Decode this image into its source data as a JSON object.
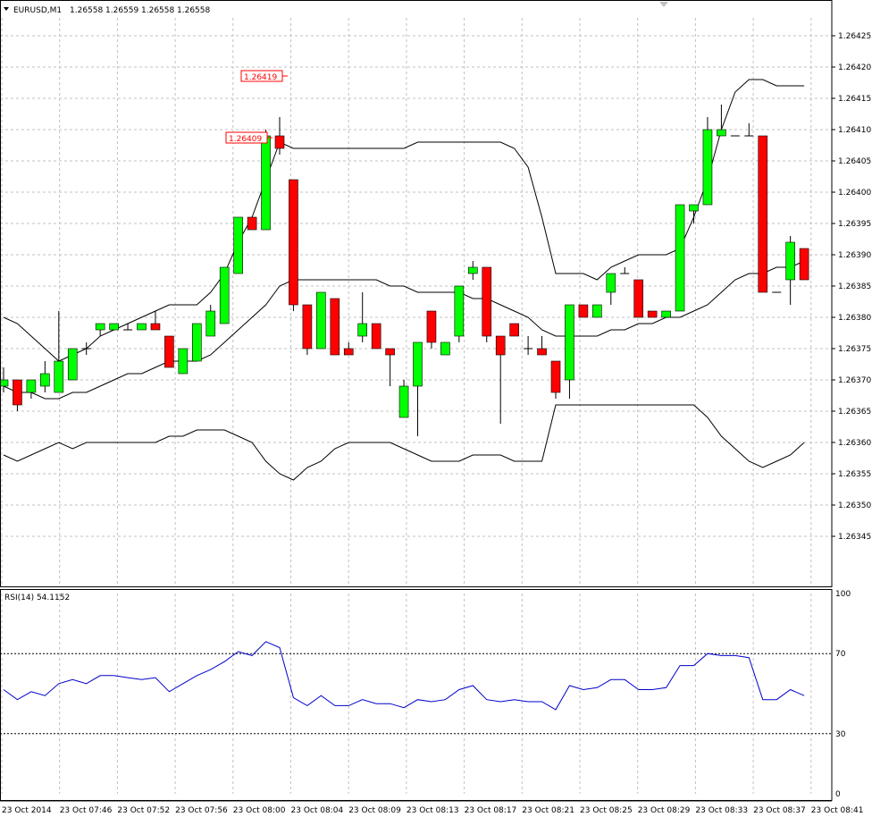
{
  "header": {
    "symbol": "EURUSD,M1",
    "o": "1.26558",
    "h": "1.26559",
    "l": "1.26558",
    "c": "1.26558"
  },
  "rsi_label": "RSI(14) 54.1152",
  "price_labels": [
    "1.26419",
    "1.26409"
  ],
  "colors": {
    "bull": "#00ff00",
    "bear": "#ff0000",
    "rsi": "#0000cc",
    "band": "#000000"
  },
  "chart_data": {
    "type": "candlestick",
    "y_ticks": [
      "1.26425",
      "1.26420",
      "1.26415",
      "1.26410",
      "1.26405",
      "1.26400",
      "1.26395",
      "1.26390",
      "1.26385",
      "1.26380",
      "1.26375",
      "1.26370",
      "1.26365",
      "1.26360",
      "1.26355",
      "1.26350",
      "1.26345"
    ],
    "x_ticks": [
      "23 Oct 2014",
      "23 Oct 07:46",
      "23 Oct 07:52",
      "23 Oct 07:56",
      "23 Oct 08:00",
      "23 Oct 08:04",
      "23 Oct 08:09",
      "23 Oct 08:13",
      "23 Oct 08:17",
      "23 Oct 08:21",
      "23 Oct 08:25",
      "23 Oct 08:29",
      "23 Oct 08:33",
      "23 Oct 08:37",
      "23 Oct 08:41"
    ],
    "candles": [
      {
        "o": 1.26369,
        "h": 1.26372,
        "l": 1.26368,
        "c": 1.2637
      },
      {
        "o": 1.2637,
        "h": 1.2637,
        "l": 1.26365,
        "c": 1.26366
      },
      {
        "o": 1.26368,
        "h": 1.2637,
        "l": 1.26367,
        "c": 1.2637
      },
      {
        "o": 1.26369,
        "h": 1.26373,
        "l": 1.26368,
        "c": 1.26371
      },
      {
        "o": 1.26368,
        "h": 1.26381,
        "l": 1.26368,
        "c": 1.26373
      },
      {
        "o": 1.2637,
        "h": 1.26375,
        "l": 1.2637,
        "c": 1.26375
      },
      {
        "o": 1.26375,
        "h": 1.26376,
        "l": 1.26374,
        "c": 1.26375
      },
      {
        "o": 1.26378,
        "h": 1.26379,
        "l": 1.26377,
        "c": 1.26379
      },
      {
        "o": 1.26378,
        "h": 1.26379,
        "l": 1.26378,
        "c": 1.26379
      },
      {
        "o": 1.26378,
        "h": 1.26379,
        "l": 1.26378,
        "c": 1.26378
      },
      {
        "o": 1.26378,
        "h": 1.26379,
        "l": 1.26378,
        "c": 1.26379
      },
      {
        "o": 1.26379,
        "h": 1.26381,
        "l": 1.26378,
        "c": 1.26378
      },
      {
        "o": 1.26377,
        "h": 1.26377,
        "l": 1.26372,
        "c": 1.26372
      },
      {
        "o": 1.26371,
        "h": 1.26375,
        "l": 1.26371,
        "c": 1.26375
      },
      {
        "o": 1.26373,
        "h": 1.26379,
        "l": 1.26373,
        "c": 1.26379
      },
      {
        "o": 1.26377,
        "h": 1.26382,
        "l": 1.26377,
        "c": 1.26381
      },
      {
        "o": 1.26379,
        "h": 1.26388,
        "l": 1.26379,
        "c": 1.26388
      },
      {
        "o": 1.26387,
        "h": 1.26396,
        "l": 1.26387,
        "c": 1.26396
      },
      {
        "o": 1.26396,
        "h": 1.26396,
        "l": 1.26394,
        "c": 1.26394
      },
      {
        "o": 1.26394,
        "h": 1.2641,
        "l": 1.26394,
        "c": 1.26409
      },
      {
        "o": 1.26409,
        "h": 1.26412,
        "l": 1.26406,
        "c": 1.26407
      },
      {
        "o": 1.26402,
        "h": 1.26402,
        "l": 1.26381,
        "c": 1.26382
      },
      {
        "o": 1.26382,
        "h": 1.26382,
        "l": 1.26374,
        "c": 1.26375
      },
      {
        "o": 1.26375,
        "h": 1.26384,
        "l": 1.26375,
        "c": 1.26384
      },
      {
        "o": 1.26383,
        "h": 1.26383,
        "l": 1.26374,
        "c": 1.26374
      },
      {
        "o": 1.26375,
        "h": 1.26376,
        "l": 1.26374,
        "c": 1.26374
      },
      {
        "o": 1.26377,
        "h": 1.26384,
        "l": 1.26376,
        "c": 1.26379
      },
      {
        "o": 1.26379,
        "h": 1.26379,
        "l": 1.26375,
        "c": 1.26375
      },
      {
        "o": 1.26375,
        "h": 1.26375,
        "l": 1.26369,
        "c": 1.26374
      },
      {
        "o": 1.26364,
        "h": 1.2637,
        "l": 1.26364,
        "c": 1.26369
      },
      {
        "o": 1.26369,
        "h": 1.26376,
        "l": 1.26361,
        "c": 1.26376
      },
      {
        "o": 1.26381,
        "h": 1.26381,
        "l": 1.26375,
        "c": 1.26376
      },
      {
        "o": 1.26374,
        "h": 1.26376,
        "l": 1.26374,
        "c": 1.26376
      },
      {
        "o": 1.26377,
        "h": 1.26385,
        "l": 1.26376,
        "c": 1.26385
      },
      {
        "o": 1.26387,
        "h": 1.26389,
        "l": 1.26386,
        "c": 1.26388
      },
      {
        "o": 1.26388,
        "h": 1.26388,
        "l": 1.26376,
        "c": 1.26377
      },
      {
        "o": 1.26377,
        "h": 1.26377,
        "l": 1.26363,
        "c": 1.26374
      },
      {
        "o": 1.26379,
        "h": 1.26379,
        "l": 1.26377,
        "c": 1.26377
      },
      {
        "o": 1.26375,
        "h": 1.26377,
        "l": 1.26374,
        "c": 1.26375
      },
      {
        "o": 1.26375,
        "h": 1.26377,
        "l": 1.26374,
        "c": 1.26374
      },
      {
        "o": 1.26373,
        "h": 1.26373,
        "l": 1.26367,
        "c": 1.26368
      },
      {
        "o": 1.2637,
        "h": 1.26382,
        "l": 1.26367,
        "c": 1.26382
      },
      {
        "o": 1.26382,
        "h": 1.26382,
        "l": 1.2638,
        "c": 1.2638
      },
      {
        "o": 1.2638,
        "h": 1.26382,
        "l": 1.2638,
        "c": 1.26382
      },
      {
        "o": 1.26384,
        "h": 1.26387,
        "l": 1.26382,
        "c": 1.26387
      },
      {
        "o": 1.26387,
        "h": 1.26388,
        "l": 1.26387,
        "c": 1.26387
      },
      {
        "o": 1.26386,
        "h": 1.26386,
        "l": 1.2638,
        "c": 1.2638
      },
      {
        "o": 1.26381,
        "h": 1.26381,
        "l": 1.2638,
        "c": 1.2638
      },
      {
        "o": 1.2638,
        "h": 1.26381,
        "l": 1.2638,
        "c": 1.26381
      },
      {
        "o": 1.26381,
        "h": 1.26398,
        "l": 1.26381,
        "c": 1.26398
      },
      {
        "o": 1.26397,
        "h": 1.26398,
        "l": 1.26395,
        "c": 1.26398
      },
      {
        "o": 1.26398,
        "h": 1.26412,
        "l": 1.26398,
        "c": 1.2641
      },
      {
        "o": 1.26409,
        "h": 1.26414,
        "l": 1.26409,
        "c": 1.2641
      },
      {
        "o": 1.26409,
        "h": 1.26409,
        "l": 1.26409,
        "c": 1.26409
      },
      {
        "o": 1.26409,
        "h": 1.26411,
        "l": 1.26409,
        "c": 1.26409
      },
      {
        "o": 1.26409,
        "h": 1.26409,
        "l": 1.26384,
        "c": 1.26384
      },
      {
        "o": 1.26384,
        "h": 1.26384,
        "l": 1.26384,
        "c": 1.26384
      },
      {
        "o": 1.26386,
        "h": 1.26393,
        "l": 1.26382,
        "c": 1.26392
      },
      {
        "o": 1.26391,
        "h": 1.26391,
        "l": 1.26386,
        "c": 1.26386
      }
    ],
    "bb_upper": [
      1.2638,
      1.26379,
      1.26377,
      1.26375,
      1.26373,
      1.26374,
      1.26375,
      1.26377,
      1.26378,
      1.26379,
      1.2638,
      1.26381,
      1.26382,
      1.26382,
      1.26382,
      1.26384,
      1.26387,
      1.26392,
      1.26396,
      1.26402,
      1.26408,
      1.26407,
      1.26407,
      1.26407,
      1.26407,
      1.26407,
      1.26407,
      1.26407,
      1.26407,
      1.26407,
      1.26408,
      1.26408,
      1.26408,
      1.26408,
      1.26408,
      1.26408,
      1.26408,
      1.26407,
      1.26404,
      1.26396,
      1.26387,
      1.26387,
      1.26387,
      1.26386,
      1.26388,
      1.26389,
      1.2639,
      1.2639,
      1.2639,
      1.26391,
      1.26396,
      1.26402,
      1.2641,
      1.26416,
      1.26418,
      1.26418,
      1.26417,
      1.26417,
      1.26417
    ],
    "bb_middle": [
      1.26369,
      1.26368,
      1.26368,
      1.26367,
      1.26367,
      1.26368,
      1.26368,
      1.26369,
      1.2637,
      1.26371,
      1.26371,
      1.26372,
      1.26373,
      1.26373,
      1.26373,
      1.26374,
      1.26376,
      1.26378,
      1.2638,
      1.26382,
      1.26385,
      1.26386,
      1.26386,
      1.26386,
      1.26386,
      1.26386,
      1.26386,
      1.26386,
      1.26385,
      1.26385,
      1.26384,
      1.26384,
      1.26384,
      1.26384,
      1.26383,
      1.26383,
      1.26382,
      1.26381,
      1.2638,
      1.26378,
      1.26377,
      1.26377,
      1.26377,
      1.26377,
      1.26378,
      1.26378,
      1.26379,
      1.26379,
      1.2638,
      1.2638,
      1.26381,
      1.26382,
      1.26384,
      1.26386,
      1.26387,
      1.26387,
      1.26388,
      1.26388,
      1.26389
    ],
    "bb_lower": [
      1.26358,
      1.26357,
      1.26358,
      1.26359,
      1.2636,
      1.26359,
      1.2636,
      1.2636,
      1.2636,
      1.2636,
      1.2636,
      1.2636,
      1.26361,
      1.26361,
      1.26362,
      1.26362,
      1.26362,
      1.26361,
      1.2636,
      1.26357,
      1.26355,
      1.26354,
      1.26356,
      1.26357,
      1.26359,
      1.2636,
      1.2636,
      1.2636,
      1.2636,
      1.26359,
      1.26358,
      1.26357,
      1.26357,
      1.26357,
      1.26358,
      1.26358,
      1.26358,
      1.26357,
      1.26357,
      1.26357,
      1.26366,
      1.26366,
      1.26366,
      1.26366,
      1.26366,
      1.26366,
      1.26366,
      1.26366,
      1.26366,
      1.26366,
      1.26366,
      1.26364,
      1.26361,
      1.26359,
      1.26357,
      1.26356,
      1.26357,
      1.26358,
      1.2636
    ],
    "rsi": [
      52,
      47,
      51,
      49,
      55,
      57,
      55,
      59,
      59,
      58,
      57,
      58,
      51,
      55,
      59,
      62,
      66,
      71,
      69,
      76,
      73,
      48,
      44,
      49,
      44,
      44,
      47,
      45,
      45,
      43,
      47,
      46,
      47,
      52,
      54,
      47,
      46,
      47,
      46,
      46,
      42,
      54,
      52,
      53,
      57,
      57,
      52,
      52,
      53,
      64,
      64,
      70,
      69,
      69,
      68,
      47,
      47,
      52,
      49
    ],
    "rsi_levels": {
      "upper": 70,
      "lower": 30
    },
    "rsi_ticks": [
      "100",
      "70",
      "30",
      "0"
    ]
  }
}
